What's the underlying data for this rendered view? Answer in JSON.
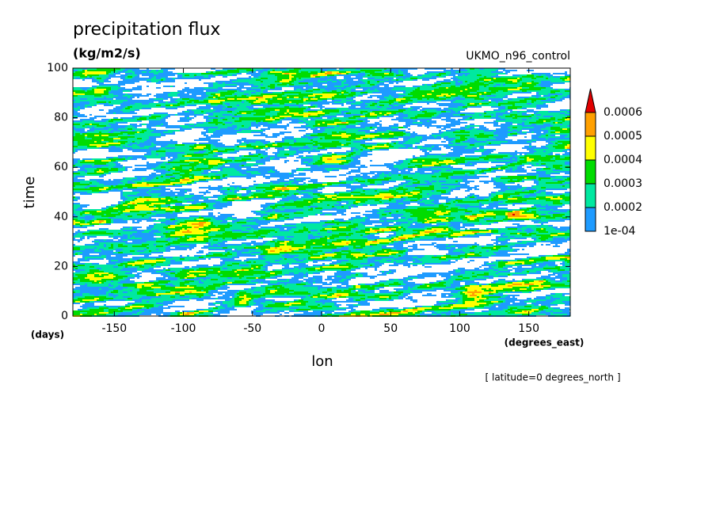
{
  "chart_data": {
    "type": "contour",
    "title": "precipitation flux",
    "units": "(kg/m2/s)",
    "subtitle": "UKMO_n96_control",
    "xlabel": "lon",
    "x_units": "(degrees_east)",
    "ylabel": "time",
    "y_units": "(days)",
    "note": "[ latitude=0 degrees_north ]",
    "xlim": [
      -180,
      180
    ],
    "xticks": [
      -150,
      -100,
      -50,
      0,
      50,
      100,
      150
    ],
    "ylim": [
      0,
      100
    ],
    "yticks": [
      0,
      20,
      40,
      60,
      80,
      100
    ],
    "colorbar": {
      "levels": [
        {
          "value": 0.0001,
          "label": "1e-04"
        },
        0.0002,
        0.0003,
        0.0004,
        0.0005,
        0.0006
      ],
      "colors": [
        "#1e9bff",
        "#00e8a0",
        "#00dc00",
        "#ffff00",
        "#ffa000",
        "#e00000"
      ]
    }
  }
}
